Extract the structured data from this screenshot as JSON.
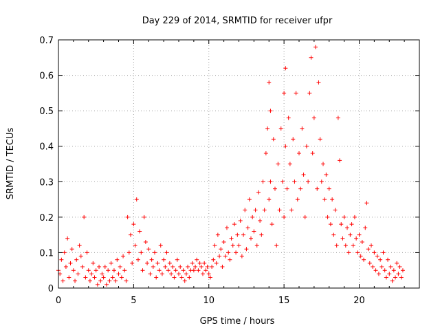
{
  "chart_data": {
    "type": "scatter",
    "title": "Day 229 of 2014, SRMTID for receiver ufpr",
    "xlabel": "GPS time / hours",
    "ylabel": "SRMTID / TECUs",
    "xlim": [
      0,
      24
    ],
    "ylim": [
      0,
      0.7
    ],
    "xticks": [
      "0",
      "5",
      "10",
      "15",
      "20"
    ],
    "yticks": [
      "0",
      "0.1",
      "0.2",
      "0.3",
      "0.4",
      "0.5",
      "0.6",
      "0.7"
    ],
    "grid": true,
    "marker": "+",
    "color": "#ff0000",
    "series": [
      {
        "name": "SRMTID",
        "points": [
          [
            0.0,
            0.05
          ],
          [
            0.1,
            0.04
          ],
          [
            0.2,
            0.08
          ],
          [
            0.3,
            0.02
          ],
          [
            0.4,
            0.1
          ],
          [
            0.5,
            0.06
          ],
          [
            0.6,
            0.14
          ],
          [
            0.7,
            0.03
          ],
          [
            0.8,
            0.07
          ],
          [
            0.9,
            0.11
          ],
          [
            1.0,
            0.05
          ],
          [
            1.1,
            0.02
          ],
          [
            1.2,
            0.08
          ],
          [
            1.3,
            0.04
          ],
          [
            1.4,
            0.12
          ],
          [
            1.5,
            0.09
          ],
          [
            1.6,
            0.06
          ],
          [
            1.7,
            0.2
          ],
          [
            1.8,
            0.03
          ],
          [
            1.9,
            0.1
          ],
          [
            2.0,
            0.05
          ],
          [
            2.1,
            0.02
          ],
          [
            2.2,
            0.04
          ],
          [
            2.3,
            0.07
          ],
          [
            2.4,
            0.03
          ],
          [
            2.5,
            0.05
          ],
          [
            2.6,
            0.01
          ],
          [
            2.7,
            0.06
          ],
          [
            2.8,
            0.02
          ],
          [
            2.9,
            0.04
          ],
          [
            3.0,
            0.03
          ],
          [
            3.1,
            0.06
          ],
          [
            3.2,
            0.01
          ],
          [
            3.3,
            0.05
          ],
          [
            3.4,
            0.02
          ],
          [
            3.5,
            0.07
          ],
          [
            3.6,
            0.03
          ],
          [
            3.7,
            0.05
          ],
          [
            3.8,
            0.02
          ],
          [
            3.9,
            0.08
          ],
          [
            4.0,
            0.04
          ],
          [
            4.1,
            0.06
          ],
          [
            4.2,
            0.03
          ],
          [
            4.3,
            0.09
          ],
          [
            4.4,
            0.05
          ],
          [
            4.5,
            0.02
          ],
          [
            4.6,
            0.2
          ],
          [
            4.7,
            0.1
          ],
          [
            4.8,
            0.15
          ],
          [
            4.9,
            0.07
          ],
          [
            5.0,
            0.18
          ],
          [
            5.1,
            0.12
          ],
          [
            5.2,
            0.25
          ],
          [
            5.3,
            0.08
          ],
          [
            5.4,
            0.16
          ],
          [
            5.5,
            0.1
          ],
          [
            5.6,
            0.05
          ],
          [
            5.7,
            0.2
          ],
          [
            5.8,
            0.13
          ],
          [
            5.9,
            0.07
          ],
          [
            6.0,
            0.11
          ],
          [
            6.1,
            0.04
          ],
          [
            6.2,
            0.08
          ],
          [
            6.3,
            0.06
          ],
          [
            6.4,
            0.1
          ],
          [
            6.5,
            0.03
          ],
          [
            6.6,
            0.07
          ],
          [
            6.7,
            0.05
          ],
          [
            6.8,
            0.12
          ],
          [
            6.9,
            0.04
          ],
          [
            7.0,
            0.08
          ],
          [
            7.1,
            0.06
          ],
          [
            7.2,
            0.1
          ],
          [
            7.3,
            0.05
          ],
          [
            7.4,
            0.07
          ],
          [
            7.5,
            0.04
          ],
          [
            7.6,
            0.06
          ],
          [
            7.7,
            0.03
          ],
          [
            7.8,
            0.05
          ],
          [
            7.9,
            0.08
          ],
          [
            8.0,
            0.04
          ],
          [
            8.1,
            0.06
          ],
          [
            8.2,
            0.03
          ],
          [
            8.3,
            0.05
          ],
          [
            8.4,
            0.02
          ],
          [
            8.5,
            0.04
          ],
          [
            8.6,
            0.06
          ],
          [
            8.7,
            0.03
          ],
          [
            8.8,
            0.05
          ],
          [
            8.9,
            0.07
          ],
          [
            9.0,
            0.05
          ],
          [
            9.1,
            0.06
          ],
          [
            9.2,
            0.08
          ],
          [
            9.3,
            0.05
          ],
          [
            9.4,
            0.07
          ],
          [
            9.5,
            0.06
          ],
          [
            9.6,
            0.04
          ],
          [
            9.7,
            0.07
          ],
          [
            9.8,
            0.05
          ],
          [
            9.9,
            0.06
          ],
          [
            10.0,
            0.04
          ],
          [
            10.1,
            0.03
          ],
          [
            10.2,
            0.06
          ],
          [
            10.3,
            0.08
          ],
          [
            10.4,
            0.12
          ],
          [
            10.5,
            0.07
          ],
          [
            10.6,
            0.15
          ],
          [
            10.7,
            0.09
          ],
          [
            10.8,
            0.11
          ],
          [
            10.9,
            0.06
          ],
          [
            11.0,
            0.13
          ],
          [
            11.1,
            0.09
          ],
          [
            11.2,
            0.17
          ],
          [
            11.3,
            0.1
          ],
          [
            11.4,
            0.08
          ],
          [
            11.5,
            0.14
          ],
          [
            11.6,
            0.12
          ],
          [
            11.7,
            0.18
          ],
          [
            11.8,
            0.1
          ],
          [
            11.9,
            0.15
          ],
          [
            12.0,
            0.12
          ],
          [
            12.1,
            0.19
          ],
          [
            12.2,
            0.09
          ],
          [
            12.3,
            0.15
          ],
          [
            12.4,
            0.22
          ],
          [
            12.5,
            0.11
          ],
          [
            12.6,
            0.17
          ],
          [
            12.7,
            0.25
          ],
          [
            12.8,
            0.14
          ],
          [
            12.9,
            0.2
          ],
          [
            13.0,
            0.16
          ],
          [
            13.1,
            0.22
          ],
          [
            13.2,
            0.12
          ],
          [
            13.3,
            0.27
          ],
          [
            13.4,
            0.19
          ],
          [
            13.5,
            0.15
          ],
          [
            13.6,
            0.3
          ],
          [
            13.7,
            0.22
          ],
          [
            13.8,
            0.38
          ],
          [
            13.9,
            0.45
          ],
          [
            14.0,
            0.25
          ],
          [
            14.0,
            0.58
          ],
          [
            14.1,
            0.3
          ],
          [
            14.1,
            0.5
          ],
          [
            14.2,
            0.18
          ],
          [
            14.3,
            0.42
          ],
          [
            14.4,
            0.28
          ],
          [
            14.5,
            0.12
          ],
          [
            14.6,
            0.35
          ],
          [
            14.7,
            0.22
          ],
          [
            14.8,
            0.45
          ],
          [
            14.9,
            0.3
          ],
          [
            15.0,
            0.55
          ],
          [
            15.0,
            0.2
          ],
          [
            15.1,
            0.62
          ],
          [
            15.1,
            0.4
          ],
          [
            15.2,
            0.28
          ],
          [
            15.3,
            0.48
          ],
          [
            15.4,
            0.35
          ],
          [
            15.5,
            0.22
          ],
          [
            15.6,
            0.42
          ],
          [
            15.7,
            0.3
          ],
          [
            15.8,
            0.55
          ],
          [
            15.9,
            0.25
          ],
          [
            16.0,
            0.38
          ],
          [
            16.1,
            0.28
          ],
          [
            16.2,
            0.45
          ],
          [
            16.3,
            0.32
          ],
          [
            16.4,
            0.2
          ],
          [
            16.5,
            0.4
          ],
          [
            16.6,
            0.3
          ],
          [
            16.7,
            0.55
          ],
          [
            16.8,
            0.65
          ],
          [
            16.9,
            0.38
          ],
          [
            17.0,
            0.48
          ],
          [
            17.1,
            0.68
          ],
          [
            17.2,
            0.28
          ],
          [
            17.3,
            0.58
          ],
          [
            17.4,
            0.42
          ],
          [
            17.5,
            0.3
          ],
          [
            17.6,
            0.35
          ],
          [
            17.7,
            0.25
          ],
          [
            17.8,
            0.32
          ],
          [
            17.9,
            0.2
          ],
          [
            18.0,
            0.28
          ],
          [
            18.1,
            0.18
          ],
          [
            18.2,
            0.25
          ],
          [
            18.3,
            0.15
          ],
          [
            18.4,
            0.22
          ],
          [
            18.5,
            0.12
          ],
          [
            18.6,
            0.48
          ],
          [
            18.7,
            0.36
          ],
          [
            18.8,
            0.18
          ],
          [
            18.9,
            0.14
          ],
          [
            19.0,
            0.2
          ],
          [
            19.1,
            0.12
          ],
          [
            19.2,
            0.17
          ],
          [
            19.3,
            0.1
          ],
          [
            19.4,
            0.15
          ],
          [
            19.5,
            0.18
          ],
          [
            19.6,
            0.12
          ],
          [
            19.7,
            0.2
          ],
          [
            19.8,
            0.14
          ],
          [
            19.9,
            0.1
          ],
          [
            20.0,
            0.15
          ],
          [
            20.1,
            0.09
          ],
          [
            20.2,
            0.13
          ],
          [
            20.3,
            0.08
          ],
          [
            20.4,
            0.17
          ],
          [
            20.5,
            0.24
          ],
          [
            20.6,
            0.11
          ],
          [
            20.7,
            0.07
          ],
          [
            20.8,
            0.12
          ],
          [
            20.9,
            0.06
          ],
          [
            21.0,
            0.1
          ],
          [
            21.1,
            0.05
          ],
          [
            21.2,
            0.09
          ],
          [
            21.3,
            0.04
          ],
          [
            21.4,
            0.08
          ],
          [
            21.5,
            0.06
          ],
          [
            21.6,
            0.1
          ],
          [
            21.7,
            0.05
          ],
          [
            21.8,
            0.03
          ],
          [
            21.9,
            0.08
          ],
          [
            22.0,
            0.04
          ],
          [
            22.1,
            0.06
          ],
          [
            22.2,
            0.02
          ],
          [
            22.3,
            0.05
          ],
          [
            22.4,
            0.03
          ],
          [
            22.5,
            0.07
          ],
          [
            22.6,
            0.04
          ],
          [
            22.7,
            0.06
          ],
          [
            22.8,
            0.03
          ],
          [
            22.9,
            0.05
          ]
        ]
      }
    ]
  }
}
